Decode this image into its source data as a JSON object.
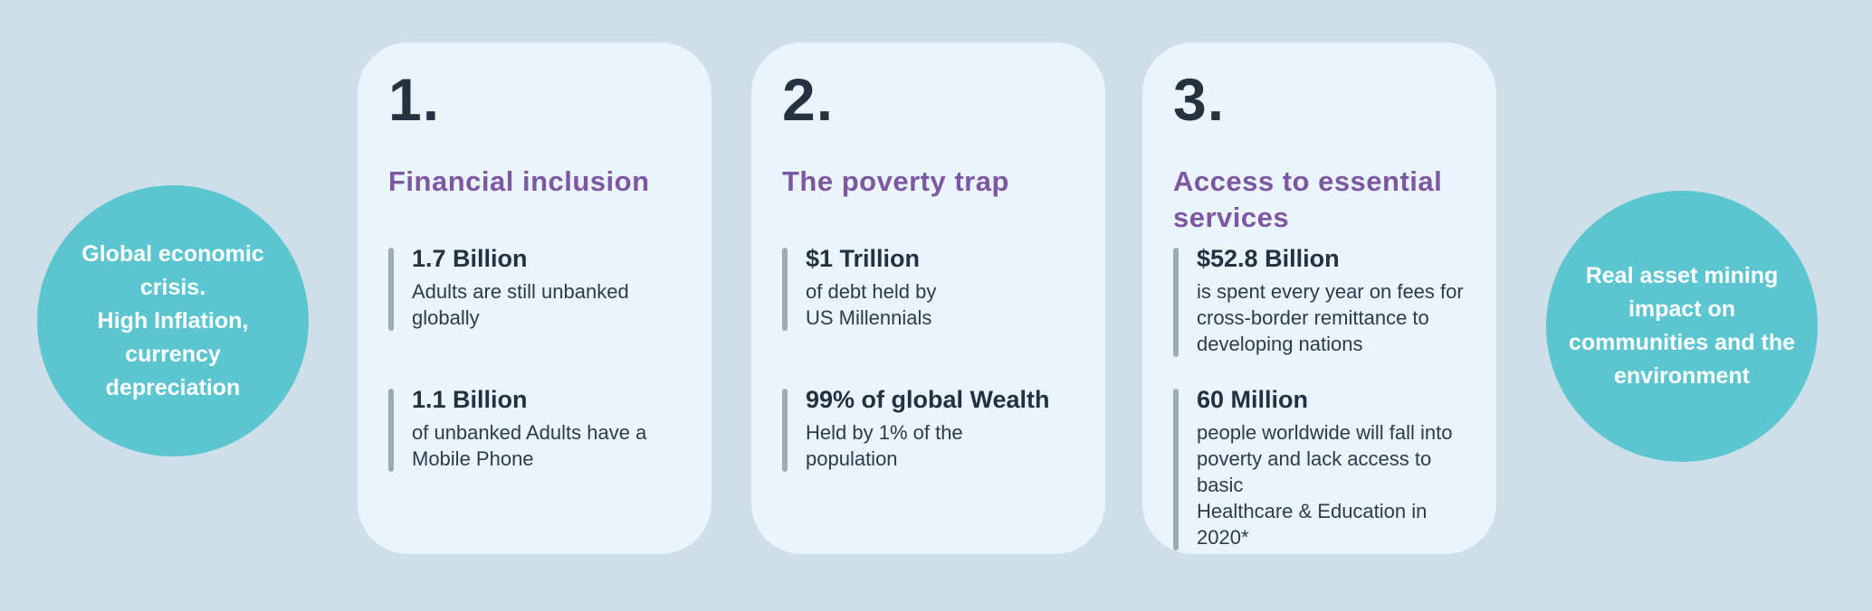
{
  "colors": {
    "page_background": "#cfdfea",
    "card_background": "#e9f4fb",
    "circle_teal": "#5bc6d0",
    "heading_purple": "#7e57a3",
    "number_dark": "#25333f",
    "stat_bar_gray": "#9dabb4",
    "circle_text_white": "#ffffff"
  },
  "left_circle": {
    "text": "Global economic\ncrisis.\nHigh Inflation,\ncurrency\ndepreciation"
  },
  "right_circle": {
    "text": "Real asset  mining\nimpact on\ncommunities and the\nenvironment"
  },
  "cards": [
    {
      "number": "1.",
      "title": "Financial inclusion",
      "stats": [
        {
          "value": "1.7 Billion",
          "description": "Adults are still unbanked\nglobally"
        },
        {
          "value": "1.1 Billion",
          "description": "of unbanked Adults have a\nMobile Phone"
        }
      ]
    },
    {
      "number": "2.",
      "title": "The poverty trap",
      "stats": [
        {
          "value": "$1 Trillion",
          "description": "of debt held by\nUS Millennials"
        },
        {
          "value": "99% of global Wealth",
          "description": "Held by 1% of the\npopulation"
        }
      ]
    },
    {
      "number": "3.",
      "title": "Access to essential\nservices",
      "stats": [
        {
          "value": "$52.8 Billion",
          "description": "is spent every year on fees for\ncross-border remittance to\ndeveloping nations"
        },
        {
          "value": "60 Million",
          "description": "people worldwide will fall into\npoverty and lack access to basic\nHealthcare & Education in 2020*"
        }
      ]
    }
  ]
}
